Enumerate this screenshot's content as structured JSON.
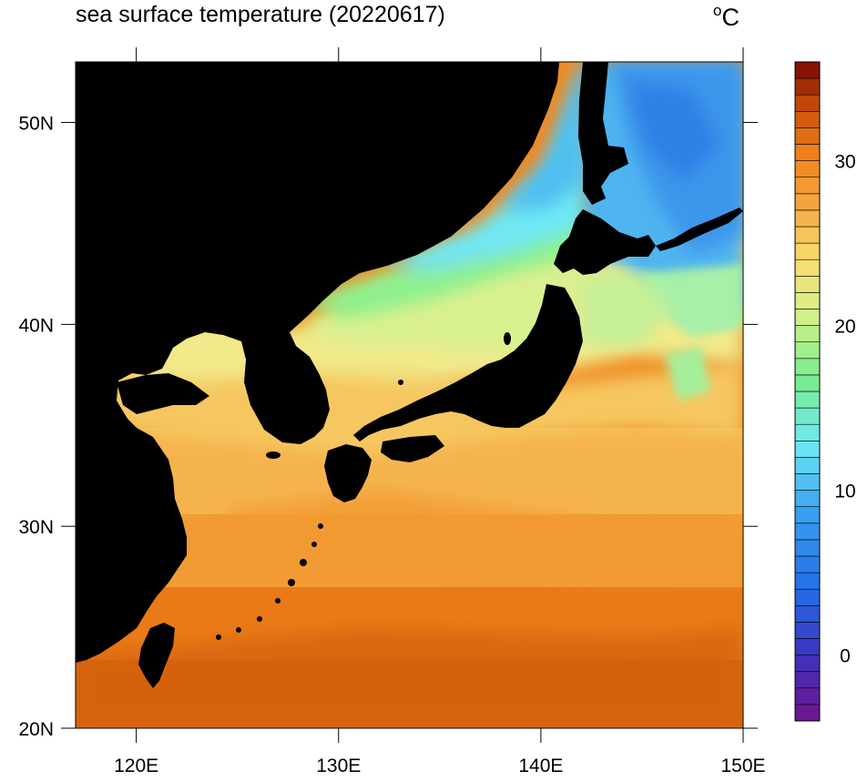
{
  "title": "sea surface temperature (20220617)",
  "unit": {
    "degree": "o",
    "letter": "C"
  },
  "map": {
    "longitude_ticks": [
      "120E",
      "130E",
      "140E",
      "150E"
    ],
    "latitude_ticks": [
      "50N",
      "40N",
      "30N",
      "20N"
    ],
    "longitude_range": [
      117,
      150
    ],
    "latitude_range": [
      20,
      53
    ],
    "land_color": "#000000"
  },
  "colorbar": {
    "tick_labels": [
      "30",
      "20",
      "10",
      "0"
    ],
    "tick_values": [
      30,
      20,
      10,
      0
    ],
    "range": [
      -4,
      36
    ],
    "step": 1,
    "colormap": "sst (purple-blue-cyan-green-yellow-orange-dark red)"
  },
  "palette": {
    "orange_dark": "#d9660b",
    "orange": "#ef8b23",
    "light_orange": "#f4a541",
    "yellow_orange": "#f6c05b",
    "pale_yellow": "#f1e98a",
    "yellow_green": "#d6f08f",
    "green": "#7ff087",
    "cyan": "#6fe8f3",
    "light_blue": "#4fbff0",
    "blue": "#3d9aeb",
    "deep_blue": "#2d7fe6"
  }
}
